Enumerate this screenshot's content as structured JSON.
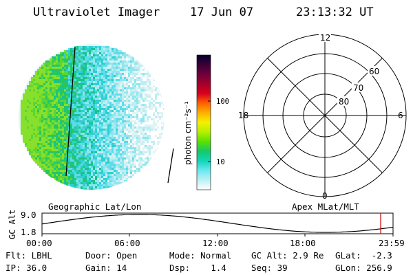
{
  "header": {
    "instrument": "Ultraviolet Imager",
    "date": "17 Jun 07",
    "time": "23:13:32 UT"
  },
  "colorbar": {
    "unit_label": "photon cm⁻²s⁻¹",
    "ticks": [
      "100",
      "10"
    ],
    "scale": "log",
    "colors": [
      "#000033",
      "#3b0035",
      "#6f003c",
      "#a5002a",
      "#d9001f",
      "#ff6000",
      "#ffb000",
      "#f4f000",
      "#b6f000",
      "#5ae000",
      "#16c86a",
      "#10d6b8",
      "#6ae8f2",
      "#bdf0f4",
      "#ffffff"
    ]
  },
  "polar_plot": {
    "mlt_labels": {
      "top": "12",
      "left": "18",
      "right": "6",
      "bottom": "0"
    },
    "lat_labels": [
      "60",
      "70",
      "80"
    ]
  },
  "map_labels": {
    "left": "Geographic Lat/Lon",
    "right": "Apex MLat/MLT"
  },
  "altitude_plot": {
    "axis_label": "GC Alt",
    "y_max_label": "9.0",
    "y_min_label": "1.8",
    "x_ticks": [
      "00:00",
      "06:00",
      "12:00",
      "18:00",
      "23:59"
    ],
    "current_time_marker_color": "#d01010"
  },
  "status": {
    "filter": {
      "label": "Flt:",
      "value": "LBHL"
    },
    "ip": {
      "label": "IP:",
      "value": "36.0"
    },
    "door": {
      "label": "Door:",
      "value": "Open"
    },
    "gain": {
      "label": "Gain:",
      "value": "14"
    },
    "mode": {
      "label": "Mode:",
      "value": "Normal"
    },
    "dsp": {
      "label": "Dsp:",
      "value": "1.4"
    },
    "gc_alt": {
      "label": "GC Alt:",
      "value": "2.9 Re"
    },
    "seq": {
      "label": "Seq:",
      "value": "39"
    },
    "glat": {
      "label": "GLat:",
      "value": "-2.3"
    },
    "glon": {
      "label": "GLon:",
      "value": "256.9"
    }
  }
}
